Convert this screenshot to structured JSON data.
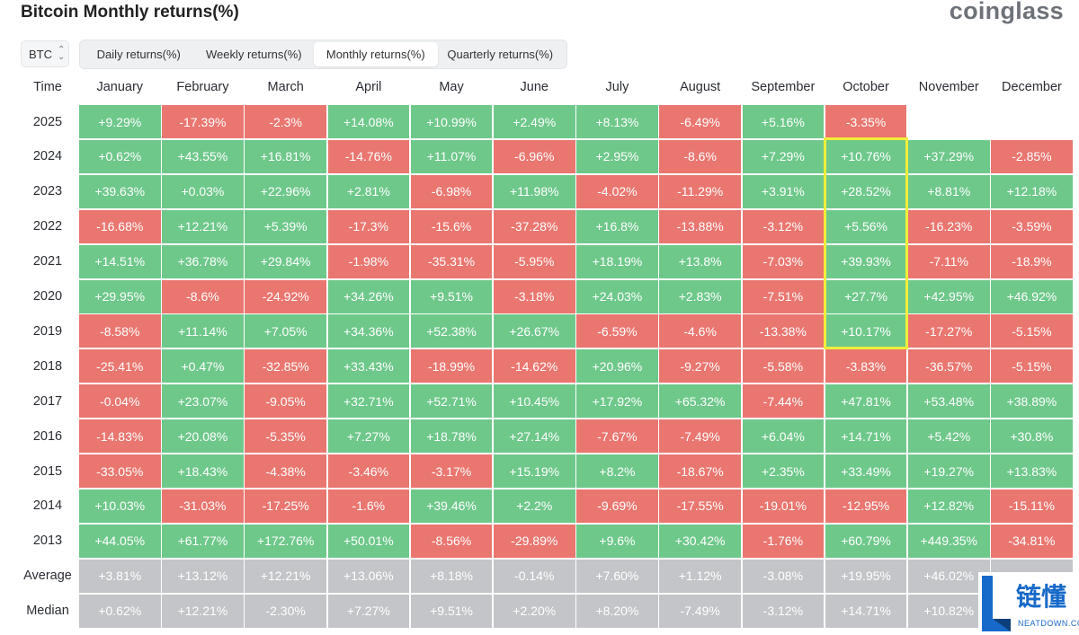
{
  "header": {
    "title": "Bitcoin Monthly returns(%)",
    "brand": "coinglass"
  },
  "coin_selector": {
    "value": "BTC"
  },
  "tabs": [
    {
      "label": "Daily returns(%)",
      "active": false
    },
    {
      "label": "Weekly returns(%)",
      "active": false
    },
    {
      "label": "Monthly returns(%)",
      "active": true
    },
    {
      "label": "Quarterly returns(%)",
      "active": false
    }
  ],
  "table": {
    "time_header": "Time",
    "months": [
      "January",
      "February",
      "March",
      "April",
      "May",
      "June",
      "July",
      "August",
      "September",
      "October",
      "November",
      "December"
    ],
    "rows": [
      {
        "year": "2025",
        "values": [
          "+9.29%",
          "-17.39%",
          "-2.3%",
          "+14.08%",
          "+10.99%",
          "+2.49%",
          "+8.13%",
          "-6.49%",
          "+5.16%",
          "-3.35%",
          "",
          ""
        ]
      },
      {
        "year": "2024",
        "values": [
          "+0.62%",
          "+43.55%",
          "+16.81%",
          "-14.76%",
          "+11.07%",
          "-6.96%",
          "+2.95%",
          "-8.6%",
          "+7.29%",
          "+10.76%",
          "+37.29%",
          "-2.85%"
        ]
      },
      {
        "year": "2023",
        "values": [
          "+39.63%",
          "+0.03%",
          "+22.96%",
          "+2.81%",
          "-6.98%",
          "+11.98%",
          "-4.02%",
          "-11.29%",
          "+3.91%",
          "+28.52%",
          "+8.81%",
          "+12.18%"
        ]
      },
      {
        "year": "2022",
        "values": [
          "-16.68%",
          "+12.21%",
          "+5.39%",
          "-17.3%",
          "-15.6%",
          "-37.28%",
          "+16.8%",
          "-13.88%",
          "-3.12%",
          "+5.56%",
          "-16.23%",
          "-3.59%"
        ]
      },
      {
        "year": "2021",
        "values": [
          "+14.51%",
          "+36.78%",
          "+29.84%",
          "-1.98%",
          "-35.31%",
          "-5.95%",
          "+18.19%",
          "+13.8%",
          "-7.03%",
          "+39.93%",
          "-7.11%",
          "-18.9%"
        ]
      },
      {
        "year": "2020",
        "values": [
          "+29.95%",
          "-8.6%",
          "-24.92%",
          "+34.26%",
          "+9.51%",
          "-3.18%",
          "+24.03%",
          "+2.83%",
          "-7.51%",
          "+27.7%",
          "+42.95%",
          "+46.92%"
        ]
      },
      {
        "year": "2019",
        "values": [
          "-8.58%",
          "+11.14%",
          "+7.05%",
          "+34.36%",
          "+52.38%",
          "+26.67%",
          "-6.59%",
          "-4.6%",
          "-13.38%",
          "+10.17%",
          "-17.27%",
          "-5.15%"
        ]
      },
      {
        "year": "2018",
        "values": [
          "-25.41%",
          "+0.47%",
          "-32.85%",
          "+33.43%",
          "-18.99%",
          "-14.62%",
          "+20.96%",
          "-9.27%",
          "-5.58%",
          "-3.83%",
          "-36.57%",
          "-5.15%"
        ]
      },
      {
        "year": "2017",
        "values": [
          "-0.04%",
          "+23.07%",
          "-9.05%",
          "+32.71%",
          "+52.71%",
          "+10.45%",
          "+17.92%",
          "+65.32%",
          "-7.44%",
          "+47.81%",
          "+53.48%",
          "+38.89%"
        ]
      },
      {
        "year": "2016",
        "values": [
          "-14.83%",
          "+20.08%",
          "-5.35%",
          "+7.27%",
          "+18.78%",
          "+27.14%",
          "-7.67%",
          "-7.49%",
          "+6.04%",
          "+14.71%",
          "+5.42%",
          "+30.8%"
        ]
      },
      {
        "year": "2015",
        "values": [
          "-33.05%",
          "+18.43%",
          "-4.38%",
          "-3.46%",
          "-3.17%",
          "+15.19%",
          "+8.2%",
          "-18.67%",
          "+2.35%",
          "+33.49%",
          "+19.27%",
          "+13.83%"
        ]
      },
      {
        "year": "2014",
        "values": [
          "+10.03%",
          "-31.03%",
          "-17.25%",
          "-1.6%",
          "+39.46%",
          "+2.2%",
          "-9.69%",
          "-17.55%",
          "-19.01%",
          "-12.95%",
          "+12.82%",
          "-15.11%"
        ]
      },
      {
        "year": "2013",
        "values": [
          "+44.05%",
          "+61.77%",
          "+172.76%",
          "+50.01%",
          "-8.56%",
          "-29.89%",
          "+9.6%",
          "+30.42%",
          "-1.76%",
          "+60.79%",
          "+449.35%",
          "-34.81%"
        ]
      }
    ],
    "summary_rows": [
      {
        "label": "Average",
        "values": [
          "+3.81%",
          "+13.12%",
          "+12.21%",
          "+13.06%",
          "+8.18%",
          "-0.14%",
          "+7.60%",
          "+1.12%",
          "-3.08%",
          "+19.95%",
          "+46.02%",
          ""
        ]
      },
      {
        "label": "Median",
        "values": [
          "+0.62%",
          "+12.21%",
          "-2.30%",
          "+7.27%",
          "+9.51%",
          "+2.20%",
          "+8.20%",
          "-7.49%",
          "-3.12%",
          "+14.71%",
          "+10.82%",
          ""
        ]
      }
    ],
    "highlight": {
      "column": "October",
      "from_year": "2024",
      "to_year": "2019",
      "color": "#f0ee3a"
    },
    "colors": {
      "positive": "#6ec88a",
      "negative": "#ea7670",
      "summary": "#c3c5c8"
    }
  },
  "watermark": {
    "text": "链懂",
    "subtext": "NEATDOWN.COM",
    "color": "#1769c9"
  }
}
